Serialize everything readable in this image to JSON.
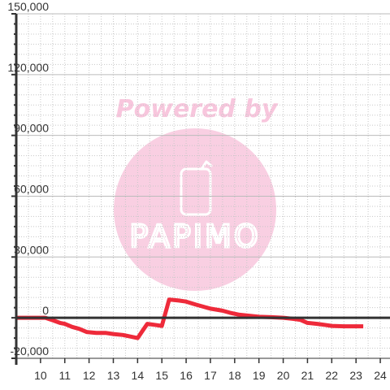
{
  "chart_data": {
    "type": "line",
    "title": "",
    "xlabel": "",
    "ylabel": "",
    "xlim": [
      9.0,
      24.4
    ],
    "ylim": [
      -20000,
      150000
    ],
    "x_ticks": [
      10,
      11,
      12,
      13,
      14,
      15,
      16,
      17,
      18,
      19,
      20,
      21,
      22,
      23,
      24
    ],
    "y_ticks": [
      -20000,
      0,
      30000,
      60000,
      90000,
      120000,
      150000
    ],
    "y_tick_labels": [
      "-20,000",
      "0",
      "30,000",
      "60,000",
      "90,000",
      "120,000",
      "150,000"
    ],
    "grid": true,
    "series": [
      {
        "color": "#ee2a3a",
        "points": [
          [
            9.0,
            0
          ],
          [
            10.2,
            0
          ],
          [
            10.5,
            -1200
          ],
          [
            10.8,
            -2500
          ],
          [
            11.0,
            -3000
          ],
          [
            11.3,
            -4500
          ],
          [
            11.6,
            -5500
          ],
          [
            11.9,
            -7000
          ],
          [
            12.3,
            -7500
          ],
          [
            12.7,
            -7500
          ],
          [
            13.0,
            -8000
          ],
          [
            13.4,
            -8500
          ],
          [
            13.8,
            -9500
          ],
          [
            14.0,
            -10000
          ],
          [
            14.2,
            -6500
          ],
          [
            14.4,
            -3000
          ],
          [
            14.7,
            -3500
          ],
          [
            15.0,
            -4000
          ],
          [
            15.3,
            9000
          ],
          [
            15.7,
            8500
          ],
          [
            16.0,
            8000
          ],
          [
            16.4,
            6500
          ],
          [
            16.7,
            5500
          ],
          [
            17.0,
            4500
          ],
          [
            17.5,
            3500
          ],
          [
            17.8,
            2500
          ],
          [
            18.2,
            1500
          ],
          [
            18.6,
            1000
          ],
          [
            19.0,
            500
          ],
          [
            19.5,
            300
          ],
          [
            20.0,
            0
          ],
          [
            20.4,
            -500
          ],
          [
            20.7,
            -1000
          ],
          [
            21.0,
            -2500
          ],
          [
            21.4,
            -3000
          ],
          [
            21.7,
            -3500
          ],
          [
            22.0,
            -4000
          ],
          [
            22.5,
            -4200
          ],
          [
            23.3,
            -4200
          ]
        ]
      }
    ]
  },
  "watermark": {
    "powered_text": "Powered by",
    "brand_text": "PAPIMO",
    "color": "#f9cfe2",
    "text_color": "#f8c6dd"
  },
  "colors": {
    "axis": "#333333",
    "grid_major": "#bbbbbb",
    "grid_dotted": "#c8c8c8"
  }
}
